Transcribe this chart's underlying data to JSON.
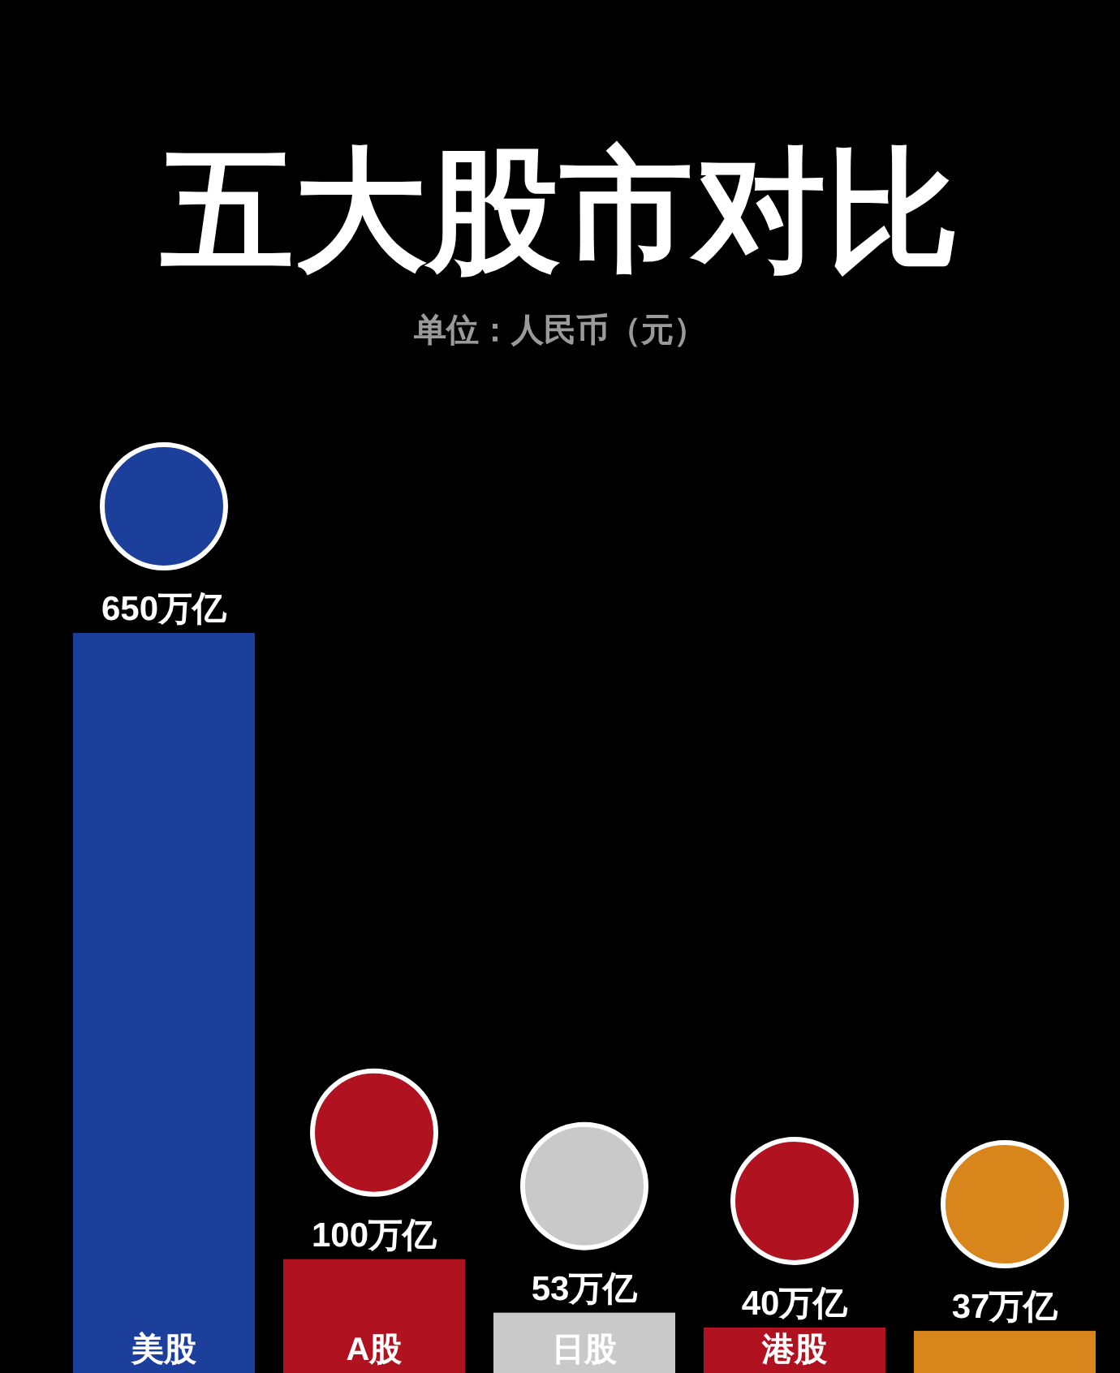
{
  "chart_data": {
    "type": "bar",
    "title": "五大股市对比",
    "subtitle": "单位：人民币（元）",
    "categories": [
      "美股",
      "A股",
      "日股",
      "港股",
      null
    ],
    "values": [
      650,
      100,
      53,
      40,
      37
    ],
    "value_labels": [
      "650万亿",
      "100万亿",
      "53万亿",
      "40万亿",
      "37万亿"
    ],
    "colors": [
      "#1d3f9c",
      "#b0121f",
      "#c9c9c9",
      "#b0121f",
      "#d8861c"
    ]
  }
}
